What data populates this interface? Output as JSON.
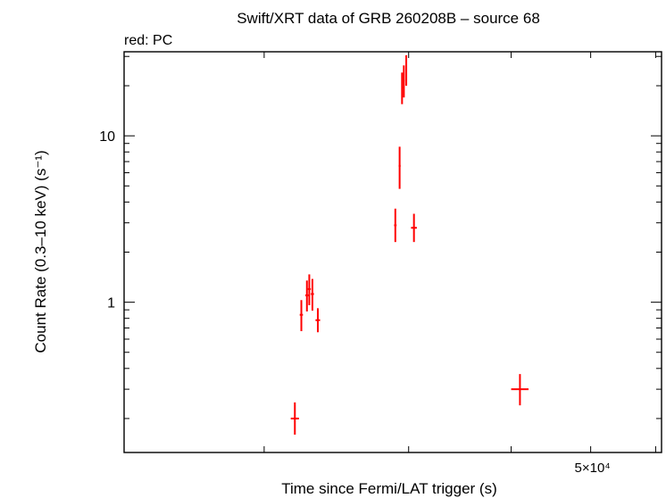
{
  "chart_data": {
    "type": "scatter",
    "title": "Swift/XRT data of GRB 260208B – source 68",
    "subtitle": "red: PC",
    "xlabel": "Time since Fermi/LAT trigger (s)",
    "ylabel": "Count Rate (0.3–10 keV) (s⁻¹)",
    "xscale": "log",
    "yscale": "log",
    "xlim": [
      13500,
      61000
    ],
    "ylim": [
      0.125,
      32
    ],
    "x_tick_labels": [
      {
        "value": 50000,
        "label": "5×10⁴"
      }
    ],
    "y_tick_labels": [
      {
        "value": 1,
        "label": "1"
      },
      {
        "value": 10,
        "label": "10"
      }
    ],
    "series": [
      {
        "color": "#ff0000",
        "points": [
          {
            "x": 21800,
            "xerr": [
              250,
              250
            ],
            "y": 0.2,
            "yerr": [
              0.04,
              0.05
            ]
          },
          {
            "x": 22200,
            "xerr": [
              100,
              100
            ],
            "y": 0.84,
            "yerr": [
              0.17,
              0.19
            ]
          },
          {
            "x": 22550,
            "xerr": [
              100,
              100
            ],
            "y": 1.1,
            "yerr": [
              0.22,
              0.25
            ]
          },
          {
            "x": 22700,
            "xerr": [
              100,
              100
            ],
            "y": 1.2,
            "yerr": [
              0.24,
              0.27
            ]
          },
          {
            "x": 22900,
            "xerr": [
              100,
              100
            ],
            "y": 1.12,
            "yerr": [
              0.23,
              0.26
            ]
          },
          {
            "x": 23250,
            "xerr": [
              150,
              150
            ],
            "y": 0.78,
            "yerr": [
              0.12,
              0.14
            ]
          },
          {
            "x": 28900,
            "xerr": [
              100,
              100
            ],
            "y": 2.9,
            "yerr": [
              0.6,
              0.75
            ]
          },
          {
            "x": 29250,
            "xerr": [
              80,
              80
            ],
            "y": 6.6,
            "yerr": [
              1.8,
              2.0
            ]
          },
          {
            "x": 29450,
            "xerr": [
              60,
              60
            ],
            "y": 19.5,
            "yerr": [
              4.0,
              4.5
            ]
          },
          {
            "x": 29600,
            "xerr": [
              60,
              60
            ],
            "y": 21.5,
            "yerr": [
              4.5,
              5.0
            ]
          },
          {
            "x": 29800,
            "xerr": [
              60,
              60
            ],
            "y": 25.0,
            "yerr": [
              5.0,
              5.5
            ]
          },
          {
            "x": 30450,
            "xerr": [
              250,
              250
            ],
            "y": 2.8,
            "yerr": [
              0.5,
              0.6
            ]
          },
          {
            "x": 41000,
            "xerr": [
              1000,
              1000
            ],
            "y": 0.3,
            "yerr": [
              0.06,
              0.07
            ]
          }
        ]
      }
    ],
    "grid": false
  }
}
